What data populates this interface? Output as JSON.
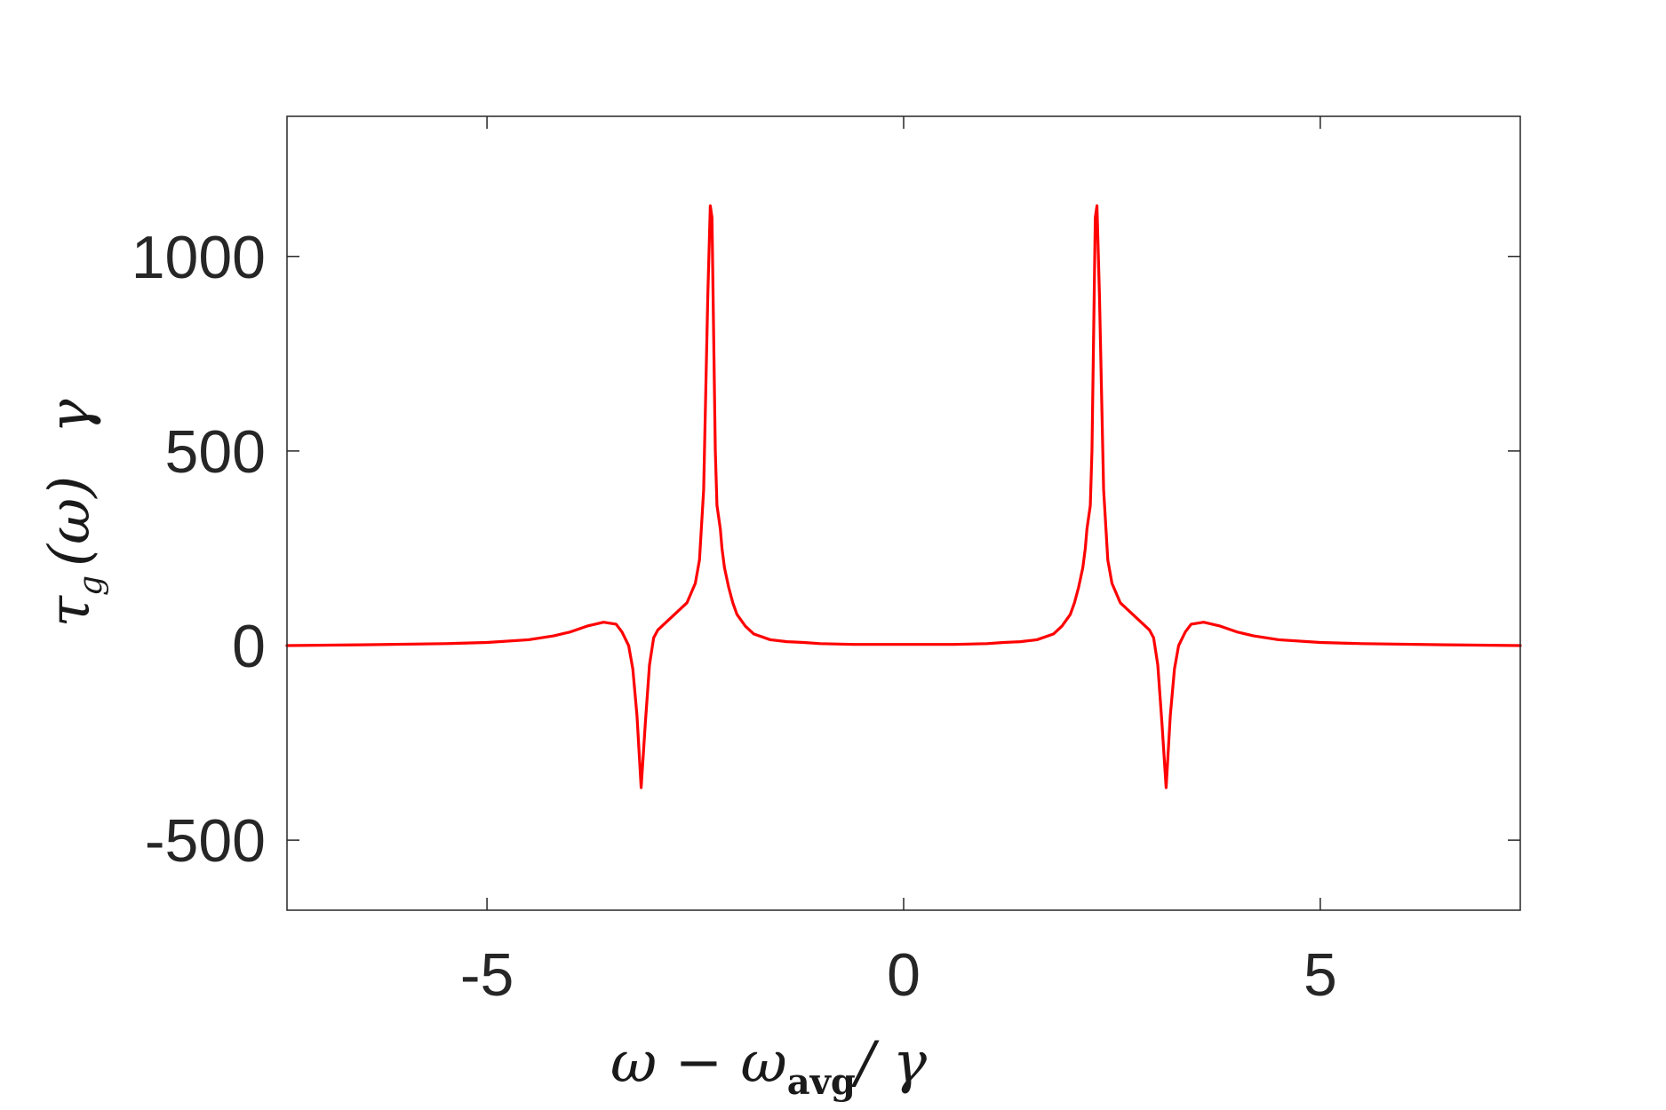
{
  "chart_data": {
    "type": "line",
    "title": "",
    "xlabel": "ω − ω_avg/ γ",
    "xlabel_parts": {
      "main": "ω − ω",
      "sub": "avg",
      "tail": "/ γ"
    },
    "ylabel": "τ_g (ω) γ",
    "ylabel_parts": {
      "main": "τ",
      "sub": "g",
      "mid": "(ω)",
      "tail": "γ"
    },
    "xlim": [
      -7.4,
      7.4
    ],
    "ylim": [
      -680,
      1360
    ],
    "xticks": [
      -5,
      0,
      5
    ],
    "xtick_labels": [
      "-5",
      "0",
      "5"
    ],
    "yticks": [
      -500,
      0,
      500,
      1000
    ],
    "ytick_labels": [
      "-500",
      "0",
      "500",
      "1000"
    ],
    "grid": false,
    "legend": "none",
    "series": [
      {
        "color": "#ff0000",
        "x": [
          -7.4,
          -6.5,
          -5.5,
          -5.0,
          -4.5,
          -4.2,
          -4.0,
          -3.8,
          -3.6,
          -3.45,
          -3.38,
          -3.3,
          -3.25,
          -3.2,
          -3.15,
          -3.1,
          -3.05,
          -3.0,
          -2.95,
          -2.9,
          -2.8,
          -2.7,
          -2.6,
          -2.5,
          -2.45,
          -2.4,
          -2.35,
          -2.32,
          -2.3,
          -2.28,
          -2.26,
          -2.24,
          -2.22,
          -2.2,
          -2.18,
          -2.15,
          -2.1,
          -2.05,
          -2.0,
          -1.9,
          -1.8,
          -1.6,
          -1.4,
          -1.2,
          -1.0,
          -0.6,
          -0.4,
          -0.2,
          0.0,
          0.2,
          0.4,
          0.6,
          1.0,
          1.2,
          1.4,
          1.6,
          1.8,
          1.9,
          2.0,
          2.05,
          2.1,
          2.15,
          2.18,
          2.2,
          2.22,
          2.24,
          2.26,
          2.28,
          2.3,
          2.32,
          2.35,
          2.4,
          2.45,
          2.5,
          2.6,
          2.7,
          2.8,
          2.9,
          2.95,
          3.0,
          3.05,
          3.1,
          3.15,
          3.2,
          3.25,
          3.3,
          3.38,
          3.45,
          3.6,
          3.8,
          4.0,
          4.2,
          4.5,
          5.0,
          5.5,
          6.5,
          7.4
        ],
        "y": [
          0,
          2,
          5,
          8,
          15,
          25,
          35,
          50,
          60,
          55,
          35,
          0,
          -60,
          -180,
          -365,
          -200,
          -50,
          20,
          40,
          50,
          70,
          90,
          110,
          160,
          220,
          400,
          900,
          1130,
          1100,
          800,
          500,
          360,
          330,
          300,
          250,
          200,
          150,
          110,
          80,
          50,
          30,
          15,
          10,
          8,
          5,
          3,
          3,
          3,
          3,
          3,
          3,
          3,
          5,
          8,
          10,
          15,
          30,
          50,
          80,
          110,
          150,
          200,
          250,
          300,
          330,
          360,
          500,
          800,
          1100,
          1130,
          900,
          400,
          220,
          160,
          110,
          90,
          70,
          50,
          40,
          20,
          -50,
          -200,
          -365,
          -180,
          -60,
          0,
          35,
          55,
          60,
          50,
          35,
          25,
          15,
          8,
          5,
          2,
          0
        ]
      }
    ]
  }
}
